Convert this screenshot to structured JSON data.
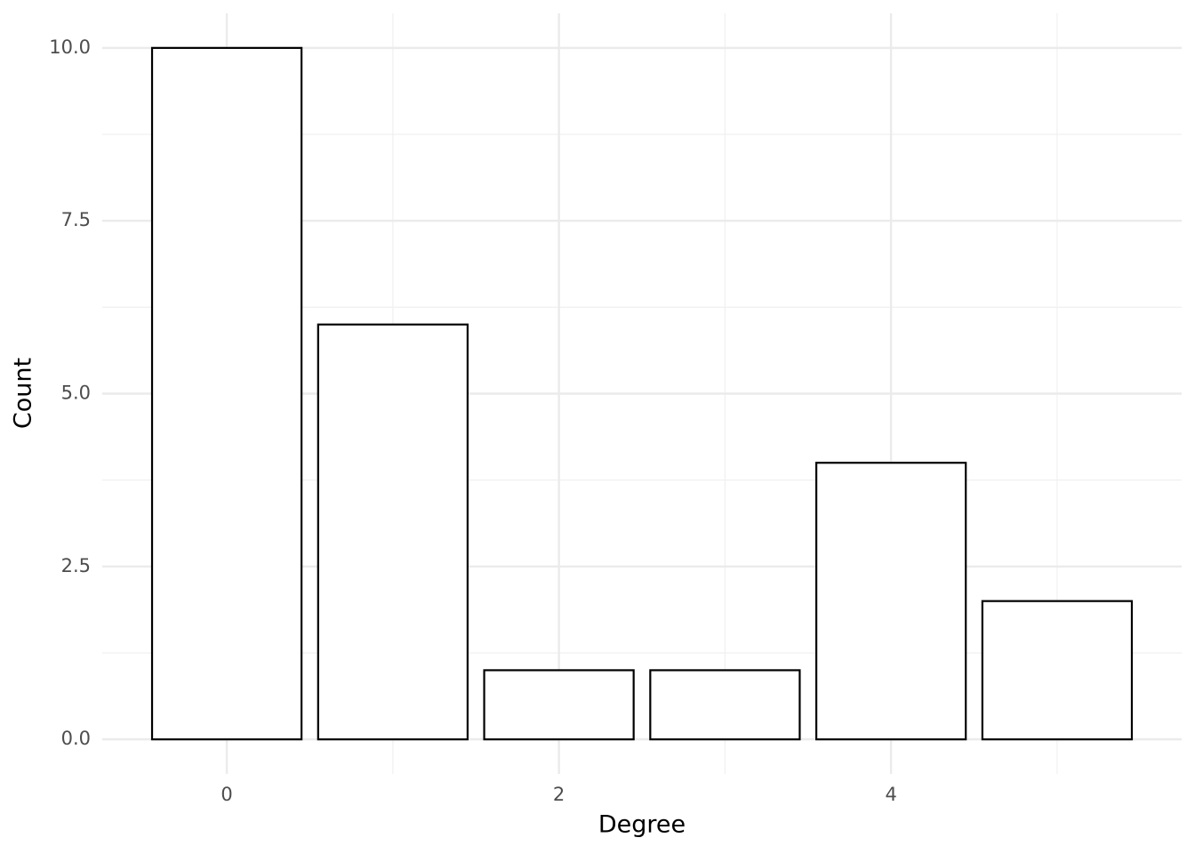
{
  "chart_data": {
    "type": "bar",
    "x_label": "Degree",
    "y_label": "Count",
    "x": [
      0,
      1,
      2,
      3,
      4,
      5
    ],
    "values": [
      10,
      6,
      1,
      1,
      4,
      2
    ],
    "color": "#ffffff",
    "edge_color": "#000000",
    "xlim": [
      -0.75,
      5.75
    ],
    "xticks": [
      0,
      2,
      4
    ],
    "ylim": [
      -0.5,
      10.5
    ],
    "yticks": [
      {
        "value": 0,
        "label": "0.0"
      },
      {
        "value": 2.5,
        "label": "2.5"
      },
      {
        "value": 5,
        "label": "5.0"
      },
      {
        "value": 7.5,
        "label": "7.5"
      },
      {
        "value": 10,
        "label": "10.0"
      }
    ],
    "grid": true
  }
}
